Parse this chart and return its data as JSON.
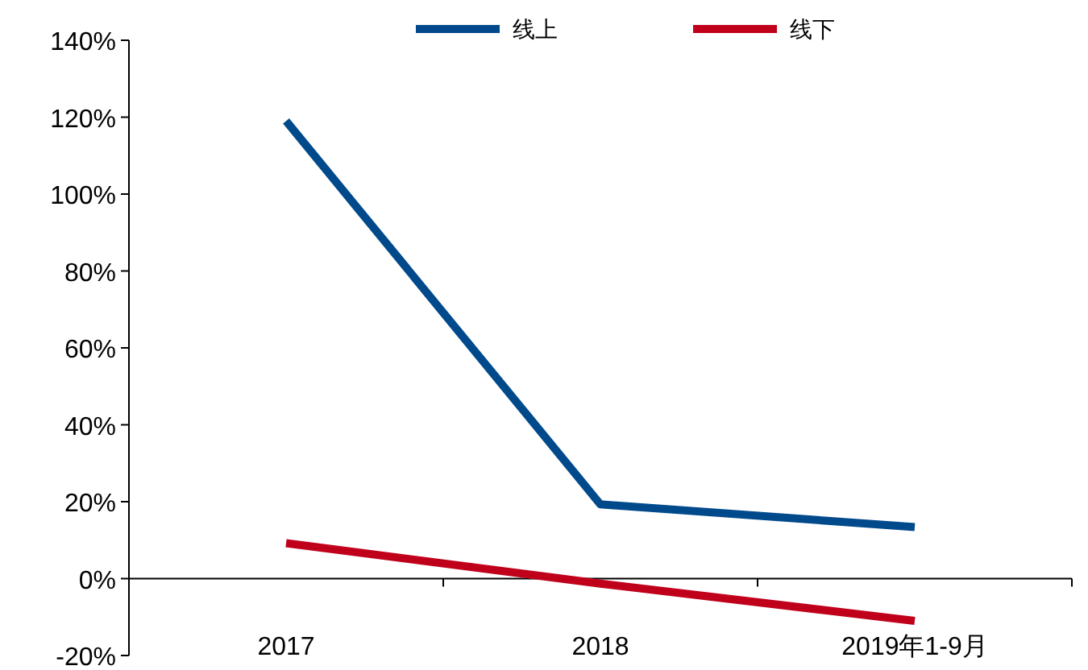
{
  "chart_data": {
    "type": "line",
    "categories": [
      "2017",
      "2018",
      "2019年1-9月"
    ],
    "series": [
      {
        "name": "线上",
        "color": "#004a8b",
        "values": [
          119,
          19.3,
          13.4
        ]
      },
      {
        "name": "线下",
        "color": "#c0001b",
        "values": [
          9.2,
          -1.3,
          -11
        ]
      }
    ],
    "ylim": [
      -20,
      140
    ],
    "yticks": [
      {
        "value": -20,
        "label": "-20%"
      },
      {
        "value": 0,
        "label": "0%"
      },
      {
        "value": 20,
        "label": "20%"
      },
      {
        "value": 40,
        "label": "40%"
      },
      {
        "value": 60,
        "label": "60%"
      },
      {
        "value": 80,
        "label": "80%"
      },
      {
        "value": 100,
        "label": "100%"
      },
      {
        "value": 120,
        "label": "120%"
      },
      {
        "value": 140,
        "label": "140%"
      }
    ],
    "grid": false,
    "legend": "top",
    "marker": "none",
    "line_style": "solid"
  }
}
